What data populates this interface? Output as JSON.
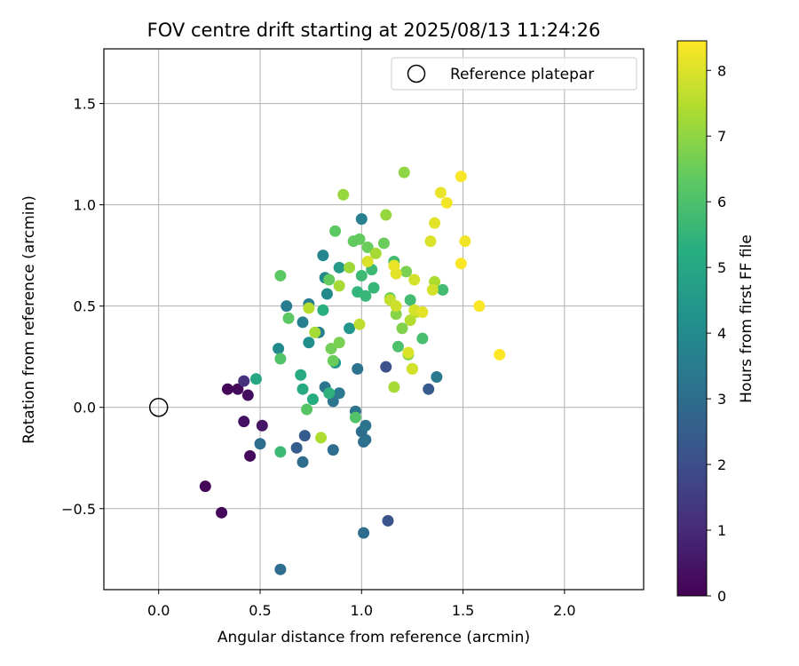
{
  "chart_data": {
    "type": "scatter",
    "title": "FOV centre drift starting at 2025/08/13 11:24:26",
    "xlabel": "Angular distance from reference (arcmin)",
    "ylabel": "Rotation from reference (arcmin)",
    "xlim": [
      -0.27,
      2.39
    ],
    "ylim": [
      -0.9,
      1.77
    ],
    "xticks": [
      0.0,
      0.5,
      1.0,
      1.5,
      2.0
    ],
    "xtick_labels": [
      "0.0",
      "0.5",
      "1.0",
      "1.5",
      "2.0"
    ],
    "yticks": [
      -0.5,
      0.0,
      0.5,
      1.0,
      1.5
    ],
    "ytick_labels": [
      "−0.5",
      "0.0",
      "0.5",
      "1.0",
      "1.5"
    ],
    "grid": true,
    "legend": {
      "placement": "top-right",
      "entries": [
        {
          "label": "Reference platepar",
          "marker": "open-circle"
        }
      ]
    },
    "reference_point": {
      "x": 0.0,
      "y": 0.0
    },
    "colorbar": {
      "label": "Hours from first FF file",
      "range": [
        0,
        8.45
      ],
      "ticks": [
        0,
        1,
        2,
        3,
        4,
        5,
        6,
        7,
        8
      ],
      "tick_labels": [
        "0",
        "1",
        "2",
        "3",
        "4",
        "5",
        "6",
        "7",
        "8"
      ],
      "colormap": "viridis"
    },
    "points": [
      {
        "x": 0.34,
        "y": 0.09,
        "h": 0.1
      },
      {
        "x": 0.39,
        "y": 0.09,
        "h": 0.2
      },
      {
        "x": 0.44,
        "y": 0.06,
        "h": 0.3
      },
      {
        "x": 0.42,
        "y": -0.07,
        "h": 0.4
      },
      {
        "x": 0.51,
        "y": -0.09,
        "h": 0.5
      },
      {
        "x": 0.45,
        "y": -0.24,
        "h": 0.2
      },
      {
        "x": 0.23,
        "y": -0.39,
        "h": 0.1
      },
      {
        "x": 0.31,
        "y": -0.52,
        "h": 0.2
      },
      {
        "x": 0.42,
        "y": 0.13,
        "h": 1.2
      },
      {
        "x": 1.13,
        "y": -0.56,
        "h": 2.2
      },
      {
        "x": 1.12,
        "y": 0.2,
        "h": 2.1
      },
      {
        "x": 1.33,
        "y": 0.09,
        "h": 2.4
      },
      {
        "x": 0.68,
        "y": -0.2,
        "h": 2.5
      },
      {
        "x": 0.72,
        "y": -0.14,
        "h": 2.4
      },
      {
        "x": 0.5,
        "y": -0.18,
        "h": 3.0
      },
      {
        "x": 0.6,
        "y": -0.8,
        "h": 3.0
      },
      {
        "x": 0.71,
        "y": -0.27,
        "h": 3.0
      },
      {
        "x": 0.86,
        "y": -0.21,
        "h": 3.0
      },
      {
        "x": 1.01,
        "y": -0.62,
        "h": 3.0
      },
      {
        "x": 1.0,
        "y": -0.12,
        "h": 3.0
      },
      {
        "x": 1.01,
        "y": -0.17,
        "h": 3.0
      },
      {
        "x": 1.02,
        "y": -0.16,
        "h": 3.1
      },
      {
        "x": 1.02,
        "y": -0.09,
        "h": 3.2
      },
      {
        "x": 0.97,
        "y": -0.02,
        "h": 3.2
      },
      {
        "x": 0.98,
        "y": 0.19,
        "h": 3.2
      },
      {
        "x": 0.82,
        "y": 0.1,
        "h": 3.3
      },
      {
        "x": 0.86,
        "y": 0.03,
        "h": 3.3
      },
      {
        "x": 0.89,
        "y": 0.07,
        "h": 3.4
      },
      {
        "x": 1.37,
        "y": 0.15,
        "h": 3.4
      },
      {
        "x": 0.63,
        "y": 0.5,
        "h": 3.5
      },
      {
        "x": 0.71,
        "y": 0.42,
        "h": 3.6
      },
      {
        "x": 0.74,
        "y": 0.51,
        "h": 3.6
      },
      {
        "x": 0.79,
        "y": 0.37,
        "h": 3.6
      },
      {
        "x": 1.0,
        "y": 0.93,
        "h": 3.6
      },
      {
        "x": 0.81,
        "y": 0.75,
        "h": 3.9
      },
      {
        "x": 0.82,
        "y": 0.64,
        "h": 4.0
      },
      {
        "x": 0.83,
        "y": 0.56,
        "h": 4.0
      },
      {
        "x": 0.59,
        "y": 0.29,
        "h": 4.0
      },
      {
        "x": 0.74,
        "y": 0.32,
        "h": 4.2
      },
      {
        "x": 0.87,
        "y": 0.22,
        "h": 4.4
      },
      {
        "x": 0.94,
        "y": 0.39,
        "h": 4.4
      },
      {
        "x": 0.89,
        "y": 0.69,
        "h": 4.6
      },
      {
        "x": 0.48,
        "y": 0.14,
        "h": 5.0
      },
      {
        "x": 0.7,
        "y": 0.16,
        "h": 5.1
      },
      {
        "x": 0.71,
        "y": 0.09,
        "h": 5.1
      },
      {
        "x": 0.76,
        "y": 0.04,
        "h": 5.2
      },
      {
        "x": 0.84,
        "y": 0.07,
        "h": 5.4
      },
      {
        "x": 0.81,
        "y": 0.48,
        "h": 5.3
      },
      {
        "x": 0.98,
        "y": 0.57,
        "h": 5.5
      },
      {
        "x": 1.02,
        "y": 0.55,
        "h": 5.6
      },
      {
        "x": 1.06,
        "y": 0.59,
        "h": 5.6
      },
      {
        "x": 1.0,
        "y": 0.65,
        "h": 5.7
      },
      {
        "x": 1.05,
        "y": 0.68,
        "h": 5.7
      },
      {
        "x": 1.16,
        "y": 0.72,
        "h": 5.8
      },
      {
        "x": 1.24,
        "y": 0.53,
        "h": 5.8
      },
      {
        "x": 1.4,
        "y": 0.58,
        "h": 5.8
      },
      {
        "x": 1.3,
        "y": 0.34,
        "h": 5.9
      },
      {
        "x": 1.18,
        "y": 0.3,
        "h": 6.0
      },
      {
        "x": 0.6,
        "y": -0.22,
        "h": 5.7
      },
      {
        "x": 0.97,
        "y": -0.05,
        "h": 6.1
      },
      {
        "x": 0.73,
        "y": -0.01,
        "h": 6.2
      },
      {
        "x": 0.6,
        "y": 0.24,
        "h": 6.1
      },
      {
        "x": 0.64,
        "y": 0.44,
        "h": 6.3
      },
      {
        "x": 0.6,
        "y": 0.65,
        "h": 6.3
      },
      {
        "x": 0.87,
        "y": 0.87,
        "h": 6.3
      },
      {
        "x": 0.96,
        "y": 0.82,
        "h": 6.4
      },
      {
        "x": 0.99,
        "y": 0.83,
        "h": 6.4
      },
      {
        "x": 1.03,
        "y": 0.79,
        "h": 6.5
      },
      {
        "x": 1.11,
        "y": 0.81,
        "h": 6.5
      },
      {
        "x": 0.84,
        "y": 0.63,
        "h": 6.4
      },
      {
        "x": 0.86,
        "y": 0.23,
        "h": 6.5
      },
      {
        "x": 0.85,
        "y": 0.29,
        "h": 6.6
      },
      {
        "x": 0.89,
        "y": 0.32,
        "h": 6.7
      },
      {
        "x": 1.14,
        "y": 0.54,
        "h": 6.6
      },
      {
        "x": 1.2,
        "y": 0.39,
        "h": 6.8
      },
      {
        "x": 1.23,
        "y": 0.26,
        "h": 6.9
      },
      {
        "x": 1.25,
        "y": 0.19,
        "h": 6.9
      },
      {
        "x": 1.22,
        "y": 0.67,
        "h": 6.7
      },
      {
        "x": 1.17,
        "y": 0.46,
        "h": 6.9
      },
      {
        "x": 1.21,
        "y": 1.16,
        "h": 7.0
      },
      {
        "x": 0.91,
        "y": 1.05,
        "h": 7.1
      },
      {
        "x": 1.12,
        "y": 0.95,
        "h": 7.1
      },
      {
        "x": 0.94,
        "y": 0.69,
        "h": 7.2
      },
      {
        "x": 1.07,
        "y": 0.76,
        "h": 7.3
      },
      {
        "x": 0.89,
        "y": 0.6,
        "h": 7.3
      },
      {
        "x": 0.77,
        "y": 0.37,
        "h": 7.3
      },
      {
        "x": 1.16,
        "y": 0.1,
        "h": 7.3
      },
      {
        "x": 0.8,
        "y": -0.15,
        "h": 7.4
      },
      {
        "x": 1.36,
        "y": 0.62,
        "h": 7.4
      },
      {
        "x": 0.74,
        "y": 0.49,
        "h": 7.5
      },
      {
        "x": 0.99,
        "y": 0.41,
        "h": 7.6
      },
      {
        "x": 1.24,
        "y": 0.43,
        "h": 7.5
      },
      {
        "x": 1.27,
        "y": 0.47,
        "h": 7.6
      },
      {
        "x": 1.14,
        "y": 0.53,
        "h": 7.7
      },
      {
        "x": 1.17,
        "y": 0.5,
        "h": 7.8
      },
      {
        "x": 1.26,
        "y": 0.63,
        "h": 7.9
      },
      {
        "x": 1.26,
        "y": 0.48,
        "h": 7.9
      },
      {
        "x": 1.35,
        "y": 0.58,
        "h": 7.9
      },
      {
        "x": 1.3,
        "y": 0.47,
        "h": 8.1
      },
      {
        "x": 1.25,
        "y": 0.19,
        "h": 7.9
      },
      {
        "x": 1.23,
        "y": 0.27,
        "h": 8.0
      },
      {
        "x": 1.03,
        "y": 0.72,
        "h": 8.0
      },
      {
        "x": 1.17,
        "y": 0.66,
        "h": 8.1
      },
      {
        "x": 1.16,
        "y": 0.7,
        "h": 8.2
      },
      {
        "x": 1.34,
        "y": 0.82,
        "h": 8.0
      },
      {
        "x": 1.36,
        "y": 0.91,
        "h": 8.1
      },
      {
        "x": 1.39,
        "y": 1.06,
        "h": 8.2
      },
      {
        "x": 1.42,
        "y": 1.01,
        "h": 8.3
      },
      {
        "x": 1.49,
        "y": 1.14,
        "h": 8.4
      },
      {
        "x": 1.51,
        "y": 0.82,
        "h": 8.3
      },
      {
        "x": 1.49,
        "y": 0.71,
        "h": 8.4
      },
      {
        "x": 1.58,
        "y": 0.5,
        "h": 8.4
      },
      {
        "x": 1.68,
        "y": 0.26,
        "h": 8.45
      }
    ]
  }
}
